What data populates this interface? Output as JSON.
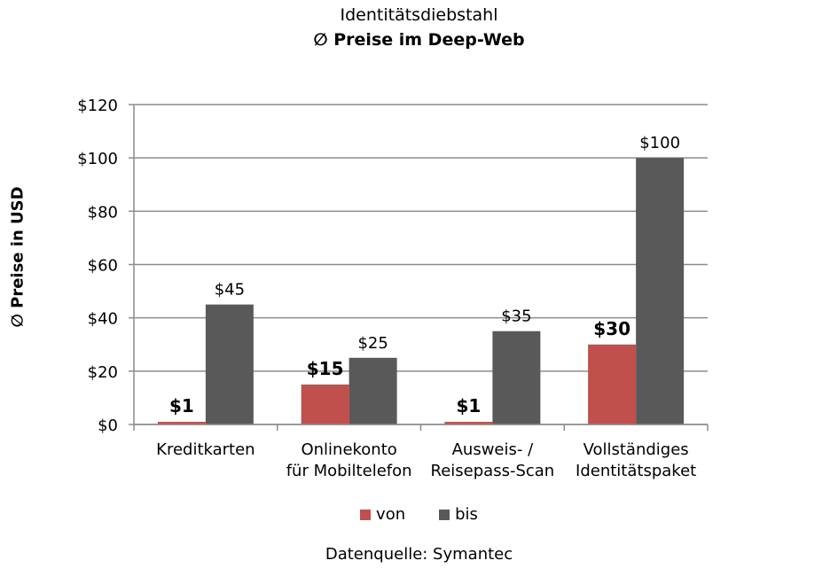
{
  "chart_data": {
    "type": "bar",
    "title": "Identitätsdiebstahl",
    "subtitle": "∅ Preise im Deep-Web",
    "ylabel": "∅ Preise in USD",
    "xlabel": "",
    "categories": [
      [
        "Kreditkarten"
      ],
      [
        "Onlinekonto",
        "für Mobiltelefon"
      ],
      [
        "Ausweis- /",
        "Reisepass-Scan"
      ],
      [
        "Vollständiges",
        "Identitätspaket"
      ]
    ],
    "series": [
      {
        "name": "von",
        "color": "#c0504d",
        "values": [
          1,
          15,
          1,
          30
        ],
        "labels": [
          "$1",
          "$15",
          "$1",
          "$30"
        ],
        "label_bold": true
      },
      {
        "name": "bis",
        "color": "#595959",
        "values": [
          45,
          25,
          35,
          100
        ],
        "labels": [
          "$45",
          "$25",
          "$35",
          "$100"
        ],
        "label_bold": false
      }
    ],
    "ylim": [
      0,
      120
    ],
    "yticks": [
      0,
      20,
      40,
      60,
      80,
      100,
      120
    ],
    "ytick_labels": [
      "$0",
      "$20",
      "$40",
      "$60",
      "$80",
      "$100",
      "$120"
    ],
    "grid": true,
    "legend": "bottom"
  },
  "source_text": "Datenquelle: Symantec"
}
